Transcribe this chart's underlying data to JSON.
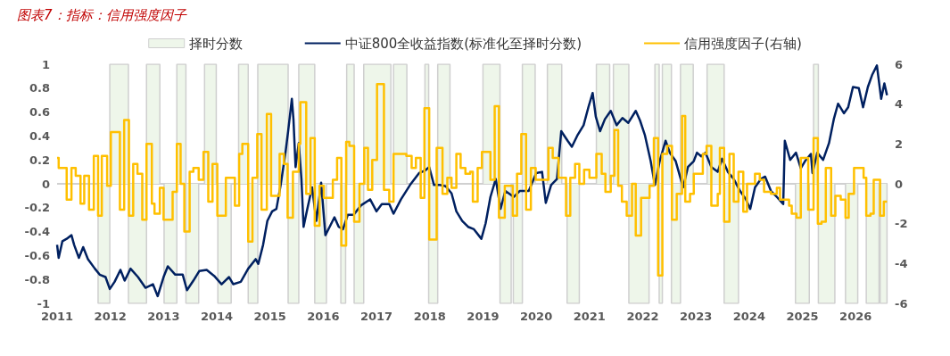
{
  "chart_data": {
    "type": "line",
    "title": "图表7：指标：信用强度因子",
    "xlim": [
      2011,
      2026.6
    ],
    "xticks": [
      2011,
      2012,
      2013,
      2014,
      2015,
      2016,
      2017,
      2018,
      2019,
      2020,
      2021,
      2022,
      2023,
      2024,
      2025,
      2026
    ],
    "ylim": [
      -1,
      1
    ],
    "yticks": [
      -1,
      -0.8,
      -0.6,
      -0.4,
      -0.2,
      0,
      0.2,
      0.4,
      0.6,
      0.8,
      1
    ],
    "y2lim": [
      -6,
      6
    ],
    "y2ticks": [
      -6,
      -4,
      -2,
      0,
      2,
      4,
      6
    ],
    "ref_lines": [
      {
        "axis": "y",
        "value": 0,
        "color": "#d0d0d0"
      }
    ],
    "grid": false,
    "legend": "top",
    "marker": "none",
    "series": [
      {
        "name": "择时分数",
        "type": "area",
        "color": "#eef6ea",
        "x": [
          2011.0,
          2011.77,
          2011.99,
          2012.34,
          2012.68,
          2012.93,
          2013.01,
          2013.25,
          2013.42,
          2013.66,
          2013.77,
          2013.99,
          2014.02,
          2014.27,
          2014.41,
          2014.59,
          2014.77,
          2015.34,
          2015.54,
          2015.84,
          2016.06,
          2016.33,
          2016.42,
          2016.44,
          2016.58,
          2016.76,
          2017.27,
          2017.32,
          2017.57,
          2017.91,
          2017.98,
          2018.15,
          2018.38,
          2019.0,
          2019.32,
          2019.53,
          2019.57,
          2019.74,
          2019.98,
          2020.21,
          2020.48,
          2020.58,
          2020.81,
          2021.13,
          2021.38,
          2021.45,
          2021.74,
          2022.12,
          2022.23,
          2022.31,
          2022.37,
          2022.54,
          2022.71,
          2022.95,
          2023.21,
          2023.53,
          2023.8,
          2024.87,
          2025.13,
          2025.21,
          2025.3,
          2025.61,
          2025.81,
          2026.04,
          2026.2,
          2026.44,
          2026.46,
          2026.59
        ],
        "values": [
          0,
          -1,
          1,
          -1,
          1,
          0,
          -1,
          1,
          -1,
          0,
          1,
          0,
          -1,
          0,
          1,
          -1,
          1,
          -1,
          1,
          -1,
          0,
          -1,
          0,
          1,
          -1,
          1,
          0,
          1,
          0,
          1,
          -1,
          1,
          0,
          1,
          -1,
          0,
          -1,
          1,
          0,
          1,
          0,
          -1,
          0,
          1,
          0,
          1,
          -1,
          0,
          1,
          -1,
          1,
          -1,
          1,
          0,
          1,
          -1,
          0,
          -1,
          0,
          1,
          -1,
          0,
          -1,
          0,
          -1,
          0,
          -1,
          0
        ]
      },
      {
        "name": "中证800全收益指数(标准化至择时分数)",
        "color": "#002060",
        "x": [
          2011.0,
          2011.03,
          2011.1,
          2011.18,
          2011.27,
          2011.32,
          2011.41,
          2011.49,
          2011.58,
          2011.71,
          2011.8,
          2011.91,
          2011.99,
          2012.08,
          2012.19,
          2012.27,
          2012.38,
          2012.52,
          2012.66,
          2012.8,
          2012.89,
          2013.0,
          2013.08,
          2013.22,
          2013.36,
          2013.44,
          2013.56,
          2013.67,
          2013.81,
          2013.95,
          2014.09,
          2014.23,
          2014.31,
          2014.45,
          2014.59,
          2014.73,
          2014.78,
          2014.87,
          2014.95,
          2015.04,
          2015.12,
          2015.2,
          2015.29,
          2015.34,
          2015.41,
          2015.44,
          2015.48,
          2015.54,
          2015.59,
          2015.63,
          2015.7,
          2015.79,
          2015.87,
          2015.96,
          2016.04,
          2016.12,
          2016.21,
          2016.29,
          2016.37,
          2016.46,
          2016.57,
          2016.71,
          2016.88,
          2017.0,
          2017.1,
          2017.24,
          2017.32,
          2017.46,
          2017.63,
          2017.8,
          2017.91,
          2017.99,
          2018.08,
          2018.19,
          2018.3,
          2018.41,
          2018.5,
          2018.61,
          2018.72,
          2018.83,
          2018.97,
          2019.05,
          2019.14,
          2019.24,
          2019.33,
          2019.42,
          2019.58,
          2019.69,
          2019.86,
          2020.0,
          2020.11,
          2020.18,
          2020.28,
          2020.39,
          2020.47,
          2020.59,
          2020.67,
          2020.78,
          2020.89,
          2020.98,
          2021.06,
          2021.12,
          2021.2,
          2021.29,
          2021.4,
          2021.51,
          2021.62,
          2021.73,
          2021.87,
          2021.95,
          2022.04,
          2022.15,
          2022.23,
          2022.32,
          2022.43,
          2022.51,
          2022.62,
          2022.76,
          2022.85,
          2022.96,
          2023.02,
          2023.1,
          2023.18,
          2023.29,
          2023.41,
          2023.49,
          2023.6,
          2023.71,
          2023.83,
          2023.94,
          2024.02,
          2024.11,
          2024.22,
          2024.3,
          2024.41,
          2024.52,
          2024.64,
          2024.67,
          2024.77,
          2024.88,
          2024.97,
          2025.05,
          2025.16,
          2025.19,
          2025.28,
          2025.39,
          2025.5,
          2025.59,
          2025.67,
          2025.78,
          2025.86,
          2025.95,
          2026.06,
          2026.14,
          2026.23,
          2026.31,
          2026.4,
          2026.48,
          2026.54,
          2026.59
        ],
        "values": [
          -0.51,
          -0.62,
          -0.48,
          -0.46,
          -0.43,
          -0.51,
          -0.62,
          -0.53,
          -0.63,
          -0.71,
          -0.76,
          -0.78,
          -0.88,
          -0.82,
          -0.72,
          -0.81,
          -0.71,
          -0.78,
          -0.87,
          -0.84,
          -0.94,
          -0.78,
          -0.69,
          -0.76,
          -0.76,
          -0.89,
          -0.81,
          -0.73,
          -0.72,
          -0.77,
          -0.84,
          -0.78,
          -0.84,
          -0.82,
          -0.71,
          -0.63,
          -0.67,
          -0.51,
          -0.31,
          -0.23,
          -0.21,
          -0.01,
          0.26,
          0.44,
          0.71,
          0.54,
          0.14,
          0.34,
          0.04,
          -0.36,
          -0.21,
          -0.03,
          -0.31,
          0.01,
          -0.43,
          -0.36,
          -0.28,
          -0.36,
          -0.38,
          -0.26,
          -0.26,
          -0.18,
          -0.13,
          -0.23,
          -0.17,
          -0.17,
          -0.25,
          -0.13,
          -0.01,
          0.09,
          0.11,
          0.14,
          -0.01,
          -0.01,
          -0.02,
          -0.08,
          -0.23,
          -0.31,
          -0.36,
          -0.38,
          -0.46,
          -0.33,
          -0.11,
          0.04,
          -0.21,
          -0.06,
          -0.11,
          -0.06,
          -0.06,
          0.09,
          0.1,
          -0.16,
          -0.01,
          0.04,
          0.44,
          0.36,
          0.31,
          0.41,
          0.49,
          0.64,
          0.76,
          0.56,
          0.44,
          0.54,
          0.61,
          0.49,
          0.55,
          0.51,
          0.61,
          0.53,
          0.41,
          0.19,
          -0.01,
          0.19,
          0.36,
          0.26,
          0.19,
          -0.03,
          0.14,
          0.19,
          0.26,
          0.23,
          0.26,
          0.14,
          0.1,
          0.21,
          0.1,
          0.04,
          -0.06,
          -0.13,
          -0.21,
          -0.03,
          0.04,
          0.06,
          -0.06,
          -0.11,
          -0.17,
          0.36,
          0.2,
          0.26,
          0.13,
          0.19,
          0.25,
          0.09,
          0.26,
          0.2,
          0.34,
          0.54,
          0.67,
          0.59,
          0.64,
          0.81,
          0.8,
          0.64,
          0.81,
          0.91,
          0.99,
          0.71,
          0.84,
          0.74
        ]
      },
      {
        "name": "信用强度因子(右轴)",
        "type": "step",
        "axis": "y2",
        "color": "#ffc000",
        "x": [
          2011.0,
          2011.03,
          2011.18,
          2011.27,
          2011.35,
          2011.44,
          2011.51,
          2011.6,
          2011.69,
          2011.77,
          2011.84,
          2011.94,
          2012.01,
          2012.18,
          2012.26,
          2012.35,
          2012.43,
          2012.51,
          2012.6,
          2012.68,
          2012.78,
          2012.83,
          2012.93,
          2013.0,
          2013.17,
          2013.25,
          2013.32,
          2013.39,
          2013.49,
          2013.56,
          2013.66,
          2013.75,
          2013.84,
          2013.92,
          2014.01,
          2014.17,
          2014.34,
          2014.42,
          2014.48,
          2014.59,
          2014.67,
          2014.76,
          2014.84,
          2014.94,
          2015.02,
          2015.18,
          2015.26,
          2015.33,
          2015.43,
          2015.54,
          2015.57,
          2015.68,
          2015.76,
          2015.84,
          2015.93,
          2016.01,
          2016.18,
          2016.26,
          2016.34,
          2016.43,
          2016.49,
          2016.58,
          2016.68,
          2016.77,
          2016.84,
          2016.92,
          2017.01,
          2017.14,
          2017.24,
          2017.32,
          2017.45,
          2017.56,
          2017.66,
          2017.74,
          2017.83,
          2017.9,
          2017.99,
          2018.13,
          2018.24,
          2018.33,
          2018.41,
          2018.5,
          2018.58,
          2018.67,
          2018.76,
          2018.81,
          2018.9,
          2018.98,
          2019.14,
          2019.22,
          2019.3,
          2019.41,
          2019.56,
          2019.64,
          2019.72,
          2019.81,
          2019.9,
          2019.99,
          2020.23,
          2020.31,
          2020.42,
          2020.56,
          2020.64,
          2020.73,
          2020.81,
          2020.9,
          2021.0,
          2021.13,
          2021.23,
          2021.3,
          2021.4,
          2021.47,
          2021.54,
          2021.61,
          2021.7,
          2021.8,
          2021.87,
          2021.97,
          2022.13,
          2022.21,
          2022.29,
          2022.37,
          2022.46,
          2022.55,
          2022.64,
          2022.74,
          2022.8,
          2022.89,
          2022.96,
          2023.13,
          2023.2,
          2023.29,
          2023.41,
          2023.45,
          2023.53,
          2023.63,
          2023.71,
          2023.8,
          2023.89,
          2023.96,
          2024.11,
          2024.2,
          2024.28,
          2024.41,
          2024.52,
          2024.58,
          2024.69,
          2024.75,
          2024.8,
          2024.89,
          2024.97,
          2025.11,
          2025.21,
          2025.29,
          2025.36,
          2025.44,
          2025.54,
          2025.62,
          2025.72,
          2025.81,
          2025.87,
          2025.97,
          2026.15,
          2026.2,
          2026.28,
          2026.34,
          2026.46,
          2026.53,
          2026.59
        ],
        "values": [
          1.3,
          0.8,
          -0.8,
          0.8,
          0.4,
          -1.0,
          0.4,
          -1.3,
          1.4,
          -1.6,
          1.4,
          -0.1,
          2.6,
          -1.3,
          3.2,
          -1.6,
          1.0,
          0.5,
          -1.8,
          2.0,
          -1.0,
          -1.5,
          -0.2,
          -1.8,
          -0.4,
          2.0,
          0.0,
          -2.4,
          0.6,
          0.8,
          0.2,
          1.6,
          -0.9,
          1.0,
          -1.6,
          0.3,
          -1.1,
          1.5,
          2.0,
          -2.9,
          0.3,
          2.5,
          -1.3,
          3.5,
          -0.6,
          1.5,
          1.0,
          -1.7,
          0.6,
          2.0,
          4.1,
          -0.5,
          2.3,
          -2.1,
          -0.1,
          -0.7,
          0.2,
          1.3,
          -3.1,
          2.1,
          1.9,
          -1.9,
          0.0,
          1.8,
          -0.3,
          1.2,
          5.0,
          -0.3,
          -0.9,
          1.5,
          1.5,
          1.4,
          0.8,
          1.3,
          -0.7,
          3.8,
          -2.8,
          1.8,
          -0.5,
          0.3,
          -0.2,
          1.5,
          0.8,
          0.5,
          0.6,
          -0.9,
          0.8,
          1.6,
          0.2,
          3.9,
          -1.7,
          -0.1,
          -1.6,
          0.5,
          2.5,
          -1.3,
          0.8,
          0.2,
          1.8,
          1.3,
          0.3,
          -1.6,
          0.3,
          1.0,
          0.0,
          0.7,
          0.3,
          1.5,
          0.5,
          -0.4,
          0.4,
          2.7,
          -0.1,
          -0.9,
          -1.6,
          0.0,
          -2.6,
          -0.7,
          -0.1,
          2.3,
          -4.6,
          1.5,
          1.9,
          -1.8,
          -0.5,
          3.4,
          -0.9,
          -0.5,
          0.5,
          1.5,
          1.9,
          -1.1,
          -0.5,
          1.8,
          -1.9,
          1.5,
          -0.9,
          0.6,
          -1.4,
          0.0,
          0.5,
          0.2,
          -0.4,
          -0.5,
          -0.2,
          -0.8,
          -0.8,
          -1.1,
          -1.5,
          -1.7,
          1.3,
          -1.3,
          2.3,
          -2.0,
          -1.9,
          0.8,
          -1.6,
          -0.6,
          -0.8,
          -1.7,
          -0.5,
          0.8,
          0.3,
          -1.6,
          -1.5,
          0.2,
          -1.6,
          -0.9,
          -0.9
        ]
      }
    ]
  }
}
